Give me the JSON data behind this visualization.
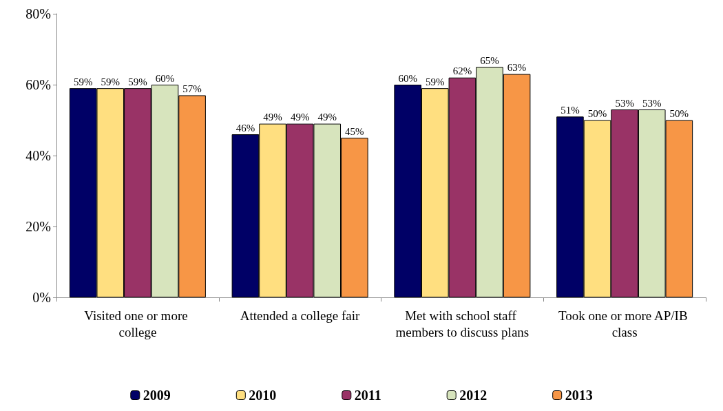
{
  "chart_data": {
    "type": "bar",
    "categories": [
      "Visited one or more college",
      "Attended a college fair",
      "Met with school staff members to discuss plans",
      "Took one or more AP/IB class"
    ],
    "series": [
      {
        "name": "2009",
        "color": "#000066",
        "values": [
          59,
          46,
          60,
          51
        ],
        "value_labels": [
          "59%",
          "46%",
          "60%",
          "51%"
        ]
      },
      {
        "name": "2010",
        "color": "#ffdf80",
        "values": [
          59,
          49,
          59,
          50
        ],
        "value_labels": [
          "59%",
          "49%",
          "59%",
          "50%"
        ]
      },
      {
        "name": "2011",
        "color": "#993366",
        "values": [
          59,
          49,
          62,
          53
        ],
        "value_labels": [
          "59%",
          "49%",
          "62%",
          "53%"
        ]
      },
      {
        "name": "2012",
        "color": "#d7e4bd",
        "values": [
          60,
          49,
          65,
          53
        ],
        "value_labels": [
          "60%",
          "49%",
          "65%",
          "53%"
        ]
      },
      {
        "name": "2013",
        "color": "#f79646",
        "values": [
          57,
          45,
          63,
          50
        ],
        "value_labels": [
          "57%",
          "45%",
          "63%",
          "50%"
        ]
      }
    ],
    "ylim": [
      0,
      80
    ],
    "yticks": [
      {
        "value": 0,
        "label": "0%"
      },
      {
        "value": 20,
        "label": "20%"
      },
      {
        "value": 40,
        "label": "40%"
      },
      {
        "value": 60,
        "label": "60%"
      },
      {
        "value": 80,
        "label": "80%"
      }
    ],
    "grid": false,
    "legend": "bottom"
  }
}
